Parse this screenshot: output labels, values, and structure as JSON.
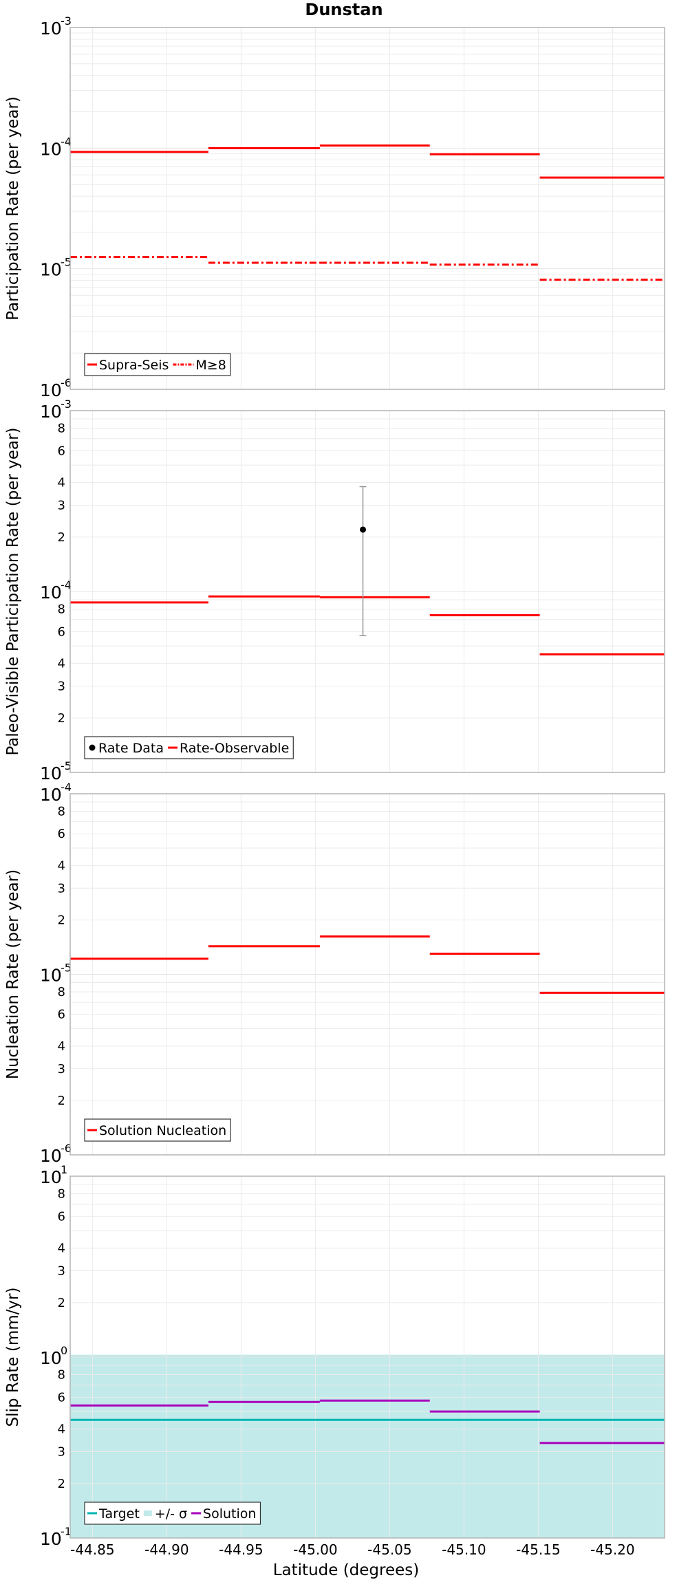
{
  "figure_title": "Dunstan",
  "x_axis": {
    "label": "Latitude (degrees)",
    "range": [
      -44.835,
      -45.235
    ],
    "ticks": [
      {
        "value": -44.85,
        "label": "-44.85"
      },
      {
        "value": -44.9,
        "label": "-44.90"
      },
      {
        "value": -44.95,
        "label": "-44.95"
      },
      {
        "value": -45.0,
        "label": "-45.00"
      },
      {
        "value": -45.05,
        "label": "-45.05"
      },
      {
        "value": -45.1,
        "label": "-45.10"
      },
      {
        "value": -45.15,
        "label": "-45.15"
      },
      {
        "value": -45.2,
        "label": "-45.20"
      }
    ]
  },
  "colors": {
    "red": "#ff0000",
    "teal": "#00b4b4",
    "band": "#c2eaea",
    "purple": "#aa00bb",
    "grid": "#ebebeb",
    "frame": "#b4b4b4",
    "errorbar": "#969696"
  },
  "chart_data": [
    {
      "type": "line",
      "ylabel": "Participation Rate (per year)",
      "yscale": "log",
      "ylim": [
        1e-06,
        0.001
      ],
      "major_ticks": [
        {
          "value": 0.001,
          "base": "10",
          "exp": "-3"
        },
        {
          "value": 0.0001,
          "base": "10",
          "exp": "-4"
        },
        {
          "value": 1e-05,
          "base": "10",
          "exp": "-5"
        },
        {
          "value": 1e-06,
          "base": "10",
          "exp": "-6"
        }
      ],
      "minor_tick_labels": [],
      "legend": [
        "Supra-Seis",
        "M≥8"
      ],
      "series": [
        {
          "name": "Supra-Seis",
          "style": "solid",
          "color": "#ff0000",
          "segments": [
            {
              "x": [
                -44.835,
                -44.928
              ],
              "y": 9.3e-05
            },
            {
              "x": [
                -44.928,
                -45.003
              ],
              "y": 0.0001
            },
            {
              "x": [
                -45.003,
                -45.077
              ],
              "y": 0.000105
            },
            {
              "x": [
                -45.077,
                -45.151
              ],
              "y": 8.9e-05
            },
            {
              "x": [
                -45.151,
                -45.235
              ],
              "y": 5.7e-05
            }
          ]
        },
        {
          "name": "M≥8",
          "style": "dashdot",
          "color": "#ff0000",
          "segments": [
            {
              "x": [
                -44.835,
                -44.928
              ],
              "y": 1.25e-05
            },
            {
              "x": [
                -44.928,
                -45.003
              ],
              "y": 1.12e-05
            },
            {
              "x": [
                -45.003,
                -45.077
              ],
              "y": 1.12e-05
            },
            {
              "x": [
                -45.077,
                -45.151
              ],
              "y": 1.08e-05
            },
            {
              "x": [
                -45.151,
                -45.235
              ],
              "y": 8.1e-06
            }
          ]
        }
      ]
    },
    {
      "type": "line",
      "ylabel": "Paleo-Visible Participation Rate (per year)",
      "yscale": "log",
      "ylim": [
        1e-05,
        0.001
      ],
      "major_ticks": [
        {
          "value": 0.001,
          "base": "10",
          "exp": "-3"
        },
        {
          "value": 0.0001,
          "base": "10",
          "exp": "-4"
        },
        {
          "value": 1e-05,
          "base": "10",
          "exp": "-5"
        }
      ],
      "minor_tick_labels": [
        {
          "value": 0.0008,
          "label": "8"
        },
        {
          "value": 0.0006,
          "label": "6"
        },
        {
          "value": 0.0004,
          "label": "4"
        },
        {
          "value": 0.0003,
          "label": "3"
        },
        {
          "value": 0.0002,
          "label": "2"
        },
        {
          "value": 8e-05,
          "label": "8"
        },
        {
          "value": 6e-05,
          "label": "6"
        },
        {
          "value": 4e-05,
          "label": "4"
        },
        {
          "value": 3e-05,
          "label": "3"
        },
        {
          "value": 2e-05,
          "label": "2"
        }
      ],
      "legend": [
        "Rate Data",
        "Rate-Observable"
      ],
      "points": [
        {
          "name": "Rate Data",
          "x": -45.032,
          "y": 0.00022,
          "y_low": 5.7e-05,
          "y_high": 0.00038
        }
      ],
      "series": [
        {
          "name": "Rate-Observable",
          "style": "solid",
          "color": "#ff0000",
          "segments": [
            {
              "x": [
                -44.835,
                -44.928
              ],
              "y": 8.7e-05
            },
            {
              "x": [
                -44.928,
                -45.003
              ],
              "y": 9.4e-05
            },
            {
              "x": [
                -45.003,
                -45.077
              ],
              "y": 9.3e-05
            },
            {
              "x": [
                -45.077,
                -45.151
              ],
              "y": 7.4e-05
            },
            {
              "x": [
                -45.151,
                -45.235
              ],
              "y": 4.5e-05
            }
          ]
        }
      ]
    },
    {
      "type": "line",
      "ylabel": "Nucleation Rate (per year)",
      "yscale": "log",
      "ylim": [
        1e-06,
        0.0001
      ],
      "major_ticks": [
        {
          "value": 0.0001,
          "base": "10",
          "exp": "-4"
        },
        {
          "value": 1e-05,
          "base": "10",
          "exp": "-5"
        },
        {
          "value": 1e-06,
          "base": "10",
          "exp": "-6"
        }
      ],
      "minor_tick_labels": [
        {
          "value": 8e-05,
          "label": "8"
        },
        {
          "value": 6e-05,
          "label": "6"
        },
        {
          "value": 4e-05,
          "label": "4"
        },
        {
          "value": 3e-05,
          "label": "3"
        },
        {
          "value": 2e-05,
          "label": "2"
        },
        {
          "value": 8e-06,
          "label": "8"
        },
        {
          "value": 6e-06,
          "label": "6"
        },
        {
          "value": 4e-06,
          "label": "4"
        },
        {
          "value": 3e-06,
          "label": "3"
        },
        {
          "value": 2e-06,
          "label": "2"
        }
      ],
      "legend": [
        "Solution Nucleation"
      ],
      "series": [
        {
          "name": "Solution Nucleation",
          "style": "solid",
          "color": "#ff0000",
          "segments": [
            {
              "x": [
                -44.835,
                -44.928
              ],
              "y": 1.22e-05
            },
            {
              "x": [
                -44.928,
                -45.003
              ],
              "y": 1.43e-05
            },
            {
              "x": [
                -45.003,
                -45.077
              ],
              "y": 1.62e-05
            },
            {
              "x": [
                -45.077,
                -45.151
              ],
              "y": 1.3e-05
            },
            {
              "x": [
                -45.151,
                -45.235
              ],
              "y": 7.9e-06
            }
          ]
        }
      ]
    },
    {
      "type": "line",
      "ylabel": "Slip Rate (mm/yr)",
      "yscale": "log",
      "ylim": [
        0.1,
        10
      ],
      "major_ticks": [
        {
          "value": 10,
          "base": "10",
          "exp": "1"
        },
        {
          "value": 1,
          "base": "10",
          "exp": "0"
        },
        {
          "value": 0.1,
          "base": "10",
          "exp": "-1"
        }
      ],
      "minor_tick_labels": [
        {
          "value": 8,
          "label": "8"
        },
        {
          "value": 6,
          "label": "6"
        },
        {
          "value": 4,
          "label": "4"
        },
        {
          "value": 3,
          "label": "3"
        },
        {
          "value": 2,
          "label": "2"
        },
        {
          "value": 0.8,
          "label": "8"
        },
        {
          "value": 0.6,
          "label": "6"
        },
        {
          "value": 0.4,
          "label": "4"
        },
        {
          "value": 0.3,
          "label": "3"
        },
        {
          "value": 0.2,
          "label": "2"
        }
      ],
      "legend": [
        "Target",
        "+/- σ",
        "Solution"
      ],
      "band": {
        "name": "+/- σ",
        "y_low": 0.1,
        "y_high": 1.03
      },
      "series": [
        {
          "name": "Target",
          "style": "solid",
          "color": "#00b4b4",
          "segments": [
            {
              "x": [
                -44.835,
                -45.235
              ],
              "y": 0.45
            }
          ]
        },
        {
          "name": "Solution",
          "style": "solid",
          "color": "#aa00bb",
          "segments": [
            {
              "x": [
                -44.835,
                -44.928
              ],
              "y": 0.54
            },
            {
              "x": [
                -44.928,
                -45.003
              ],
              "y": 0.565
            },
            {
              "x": [
                -45.003,
                -45.077
              ],
              "y": 0.575
            },
            {
              "x": [
                -45.077,
                -45.151
              ],
              "y": 0.5
            },
            {
              "x": [
                -45.151,
                -45.235
              ],
              "y": 0.335
            }
          ]
        }
      ]
    }
  ]
}
